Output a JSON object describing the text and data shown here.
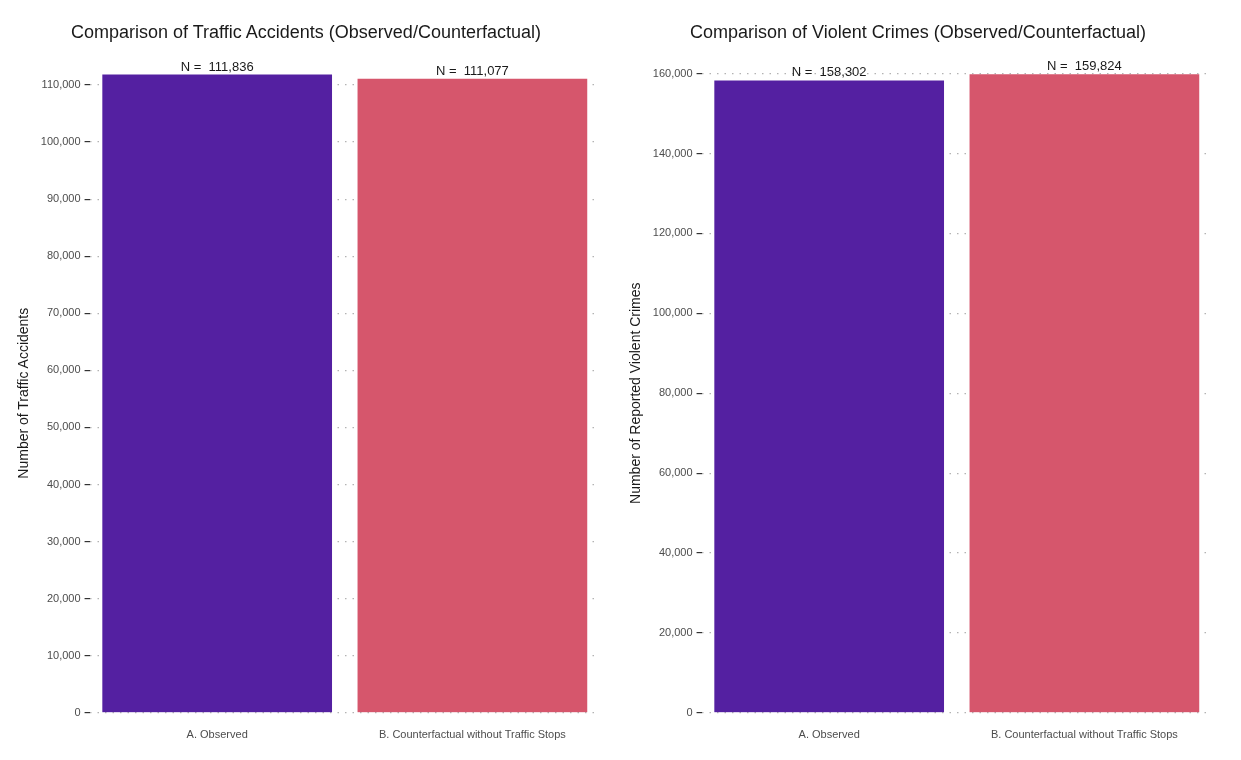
{
  "chart_data": [
    {
      "type": "bar",
      "title": "Comparison of Traffic Accidents (Observed/Counterfactual)",
      "ylabel": "Number of Traffic Accidents",
      "categories": [
        "A. Observed",
        "B. Counterfactual without Traffic Stops"
      ],
      "values": [
        111836,
        111077
      ],
      "colors": [
        "#5420a1",
        "#d6566c"
      ],
      "value_labels": [
        "N =  111,836",
        "N =  111,077"
      ],
      "ylim": [
        0,
        112000
      ],
      "yticks": [
        {
          "value": 0,
          "label": "0"
        },
        {
          "value": 10000,
          "label": "10,000"
        },
        {
          "value": 20000,
          "label": "20,000"
        },
        {
          "value": 30000,
          "label": "30,000"
        },
        {
          "value": 40000,
          "label": "40,000"
        },
        {
          "value": 50000,
          "label": "50,000"
        },
        {
          "value": 60000,
          "label": "60,000"
        },
        {
          "value": 70000,
          "label": "70,000"
        },
        {
          "value": 80000,
          "label": "80,000"
        },
        {
          "value": 90000,
          "label": "90,000"
        },
        {
          "value": 100000,
          "label": "100,000"
        },
        {
          "value": 110000,
          "label": "110,000"
        }
      ],
      "grid": "y",
      "legend": false
    },
    {
      "type": "bar",
      "title": "Comparison of Violent Crimes (Observed/Counterfactual)",
      "ylabel": "Number of Reported Violent Crimes",
      "categories": [
        "A. Observed",
        "B. Counterfactual without Traffic Stops"
      ],
      "values": [
        158302,
        159824
      ],
      "colors": [
        "#5420a1",
        "#d6566c"
      ],
      "value_labels": [
        "N =  158,302",
        "N =  159,824"
      ],
      "ylim": [
        0,
        160000
      ],
      "yticks": [
        {
          "value": 0,
          "label": "0"
        },
        {
          "value": 20000,
          "label": "20,000"
        },
        {
          "value": 40000,
          "label": "40,000"
        },
        {
          "value": 60000,
          "label": "60,000"
        },
        {
          "value": 80000,
          "label": "80,000"
        },
        {
          "value": 100000,
          "label": "100,000"
        },
        {
          "value": 120000,
          "label": "120,000"
        },
        {
          "value": 140000,
          "label": "140,000"
        },
        {
          "value": 160000,
          "label": "160,000"
        }
      ],
      "grid": "y",
      "legend": false
    }
  ]
}
